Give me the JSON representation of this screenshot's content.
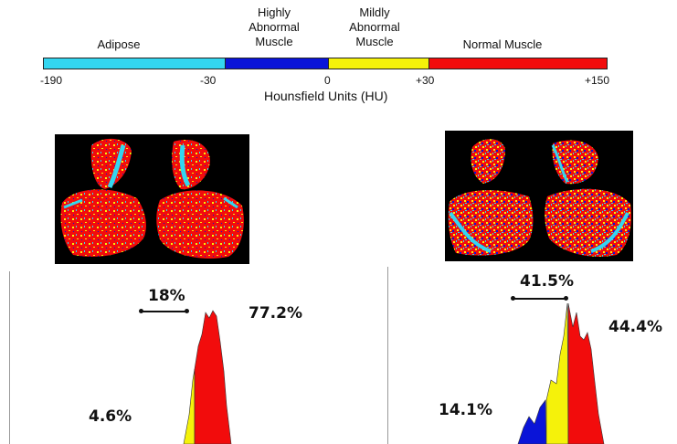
{
  "colorbar": {
    "segments": [
      {
        "label": "Adipose",
        "from": -190,
        "to": -30,
        "color": "#33d6f0"
      },
      {
        "label": "Highly\nAbnormal\nMuscle",
        "from": -30,
        "to": 0,
        "color": "#0a14d8"
      },
      {
        "label": "Mildly\nAbnormal\nMuscle",
        "from": 0,
        "to": 30,
        "color": "#f5f20a"
      },
      {
        "label": "Normal Muscle",
        "from": 30,
        "to": 150,
        "color": "#f20c0c"
      }
    ],
    "ticks": [
      "-190",
      "-30",
      "0",
      "+30",
      "+150"
    ],
    "axis_title": "Hounsfield Units (HU)"
  },
  "panels": [
    {
      "normal_pct": "77.2%",
      "abnormal_pct": "18%",
      "adipose_pct": "4.6%"
    },
    {
      "normal_pct": "44.4%",
      "abnormal_pct": "41.5%",
      "adipose_pct": "14.1%"
    }
  ],
  "colors": {
    "adipose": "#33d6f0",
    "highly_abnormal": "#0a14d8",
    "mildly_abnormal": "#f5f20a",
    "normal": "#f20c0c",
    "background": "#000000"
  }
}
